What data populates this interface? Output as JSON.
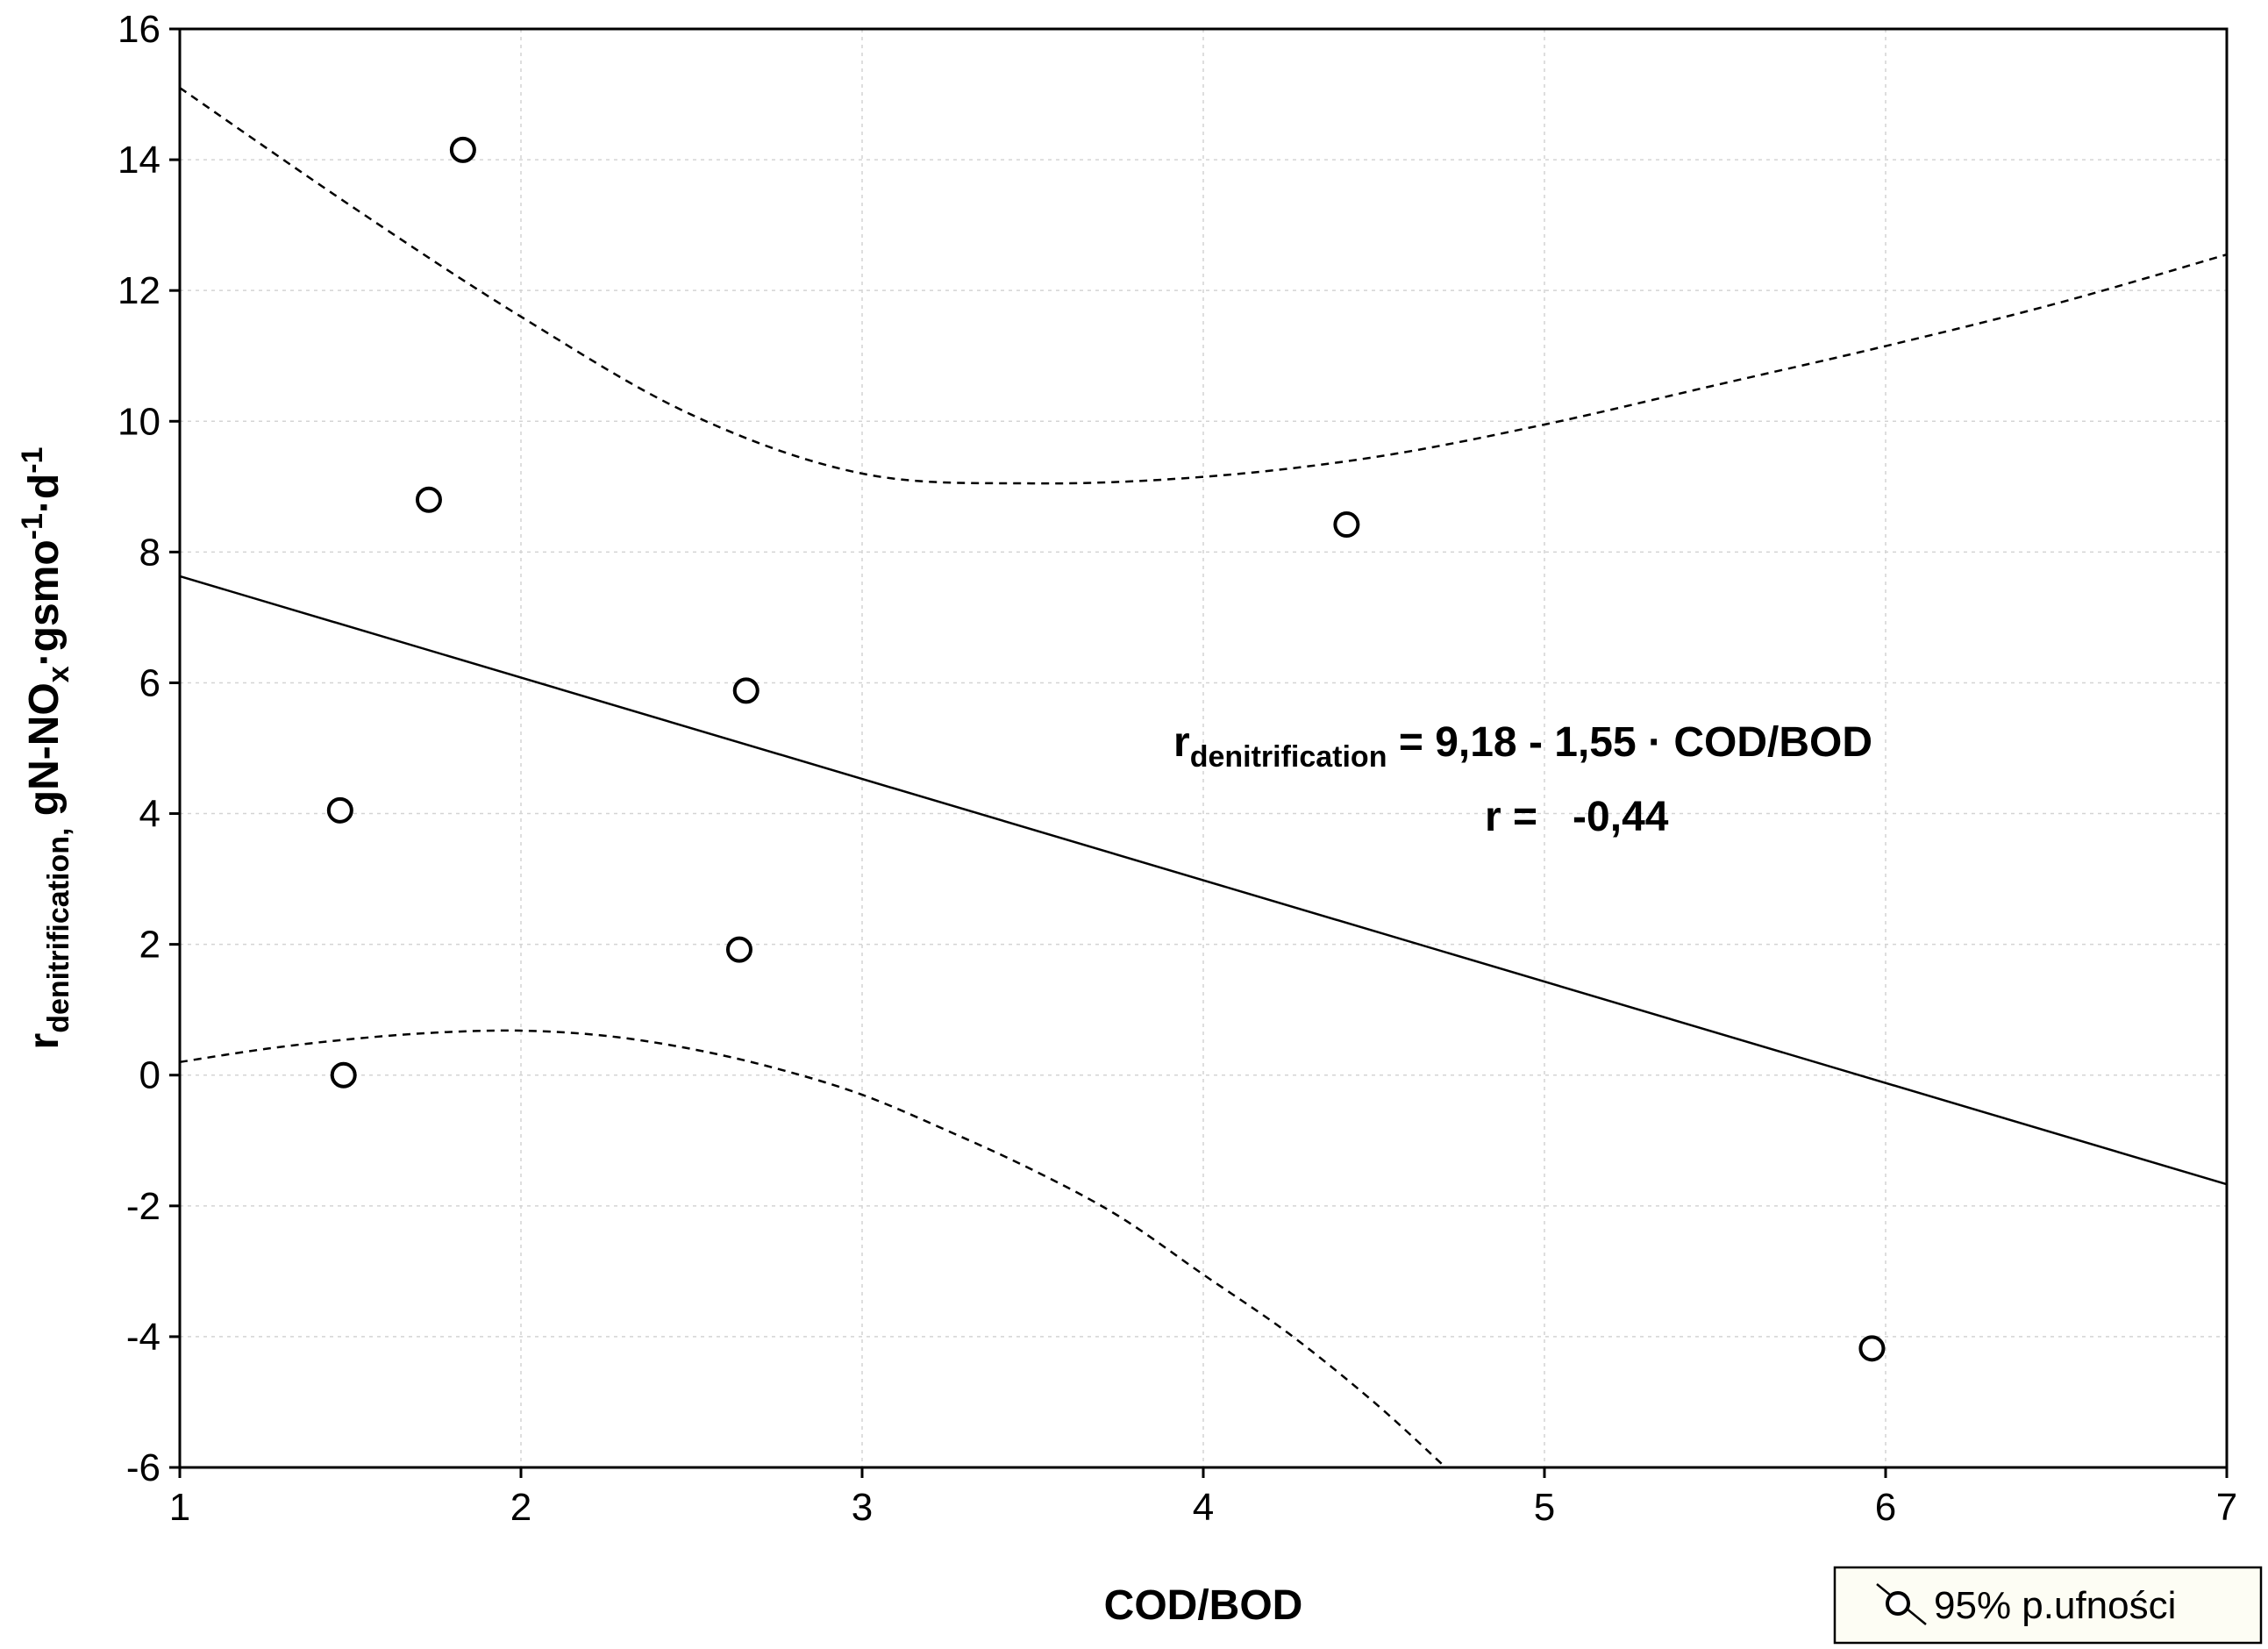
{
  "chart_data": {
    "type": "scatter",
    "title": "",
    "xlabel": "COD/BOD",
    "ylabel": {
      "main": "r",
      "main_sub": "denitrification,",
      "unit_a": " gN-NO",
      "unit_a_sub": "x",
      "unit_b": "·gsmo",
      "unit_b_sup": "-1",
      "unit_c": "·d",
      "unit_c_sup": "-1"
    },
    "xlim": [
      1,
      7
    ],
    "ylim": [
      -6,
      16
    ],
    "xticks": [
      1,
      2,
      3,
      4,
      5,
      6,
      7
    ],
    "yticks": [
      -6,
      -4,
      -2,
      0,
      2,
      4,
      6,
      8,
      10,
      12,
      14,
      16
    ],
    "grid": true,
    "points": {
      "name": "observations",
      "x": [
        1.47,
        1.48,
        1.73,
        1.83,
        2.64,
        2.66,
        4.42,
        5.96
      ],
      "y": [
        4.05,
        0.0,
        8.8,
        14.15,
        1.92,
        5.88,
        8.42,
        -4.18
      ]
    },
    "regression": {
      "name": "fit",
      "intercept": 9.18,
      "slope": -1.55
    },
    "confidence_band": {
      "name": "95% p.ufności",
      "upper": {
        "x": [
          1.0,
          1.5,
          2.0,
          2.5,
          3.0,
          3.5,
          4.0,
          4.5,
          5.0,
          5.5,
          6.0,
          6.5,
          7.0
        ],
        "y": [
          15.1,
          13.3,
          11.6,
          10.1,
          9.2,
          9.05,
          9.15,
          9.45,
          9.95,
          10.55,
          11.15,
          11.8,
          12.55
        ]
      },
      "lower": {
        "x": [
          1.0,
          1.25,
          1.5,
          1.75,
          2.0,
          2.25,
          2.5,
          2.75,
          3.0,
          3.25,
          3.5,
          3.75,
          4.0,
          4.25,
          4.5,
          4.7
        ],
        "y": [
          0.2,
          0.4,
          0.55,
          0.65,
          0.68,
          0.6,
          0.4,
          0.1,
          -0.3,
          -0.85,
          -1.45,
          -2.15,
          -3.05,
          -3.95,
          -5.0,
          -5.95
        ]
      }
    },
    "annotations": {
      "equation_lhs": "r",
      "equation_lhs_sub": "denitrification",
      "equation_rhs": " = 9,18 - 1,55 · COD/BOD",
      "r_label": "r =   -0,44"
    },
    "legend": {
      "position": "bottom-right",
      "label": "95% p.ufności"
    }
  },
  "colors": {
    "axis": "#000000",
    "grid": "#d4d4d4",
    "marker_stroke": "#000000",
    "marker_fill": "#ffffff",
    "legend_bg": "#fdfdf4"
  }
}
